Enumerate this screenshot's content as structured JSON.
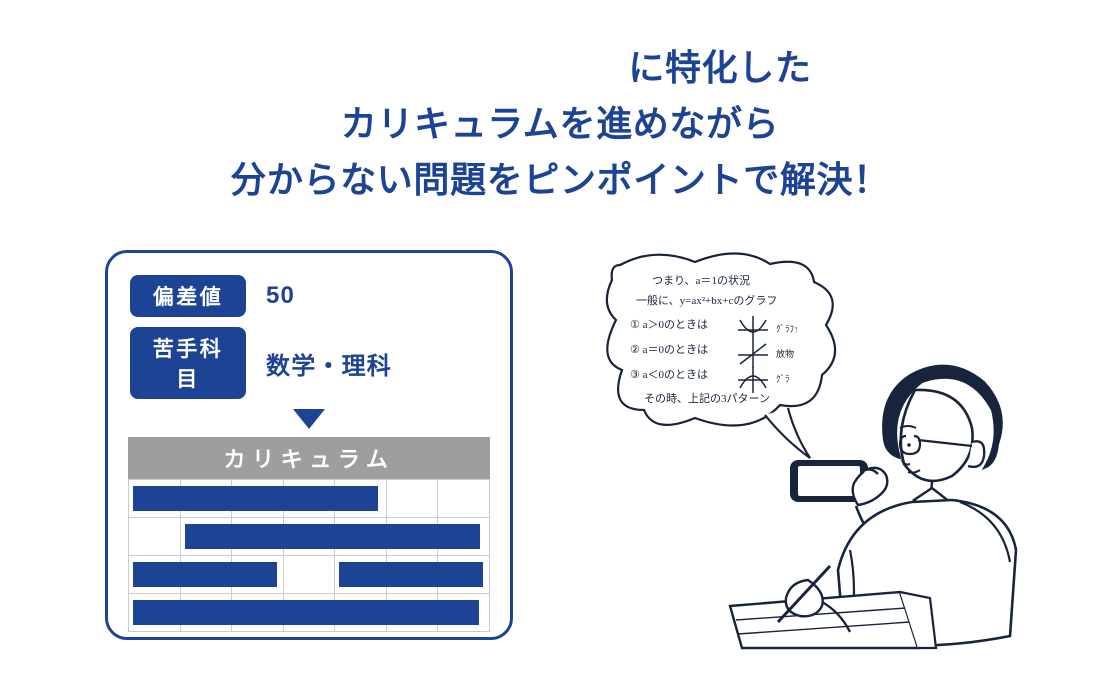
{
  "colors": {
    "primary": "#1d4395",
    "grey": "#9e9e9e",
    "border_grey": "#cccccc",
    "ink": "#18243b",
    "skin": "#ffffff",
    "bg": "#ffffff"
  },
  "headline": {
    "line1": "に特化した",
    "line2": "カリキュラムを進めながら",
    "line3": "分からない問題をピンポイントで解決！"
  },
  "card": {
    "score_label": "偏差値",
    "score_value": "50",
    "weak_label": "苦手科目",
    "weak_value": "数学・理科",
    "table_title": "カリキュラム",
    "columns": 7,
    "rows": [
      {
        "bars": [
          {
            "start": 0,
            "end": 5
          }
        ]
      },
      {
        "bars": [
          {
            "start": 1,
            "end": 7
          }
        ]
      },
      {
        "bars": [
          {
            "start": 0,
            "end": 3
          },
          {
            "start": 4,
            "end": 7
          }
        ]
      },
      {
        "bars": [
          {
            "start": 0,
            "end": 7
          }
        ]
      }
    ]
  },
  "bubble": {
    "lines": [
      "つまり、a＝1の状況",
      "一般に、y=ax²+bx+cのグラフ",
      "① a＞0のときは",
      "② a＝0のときは",
      "③ a＜0のときは",
      "その時、上記の3パターン"
    ]
  }
}
